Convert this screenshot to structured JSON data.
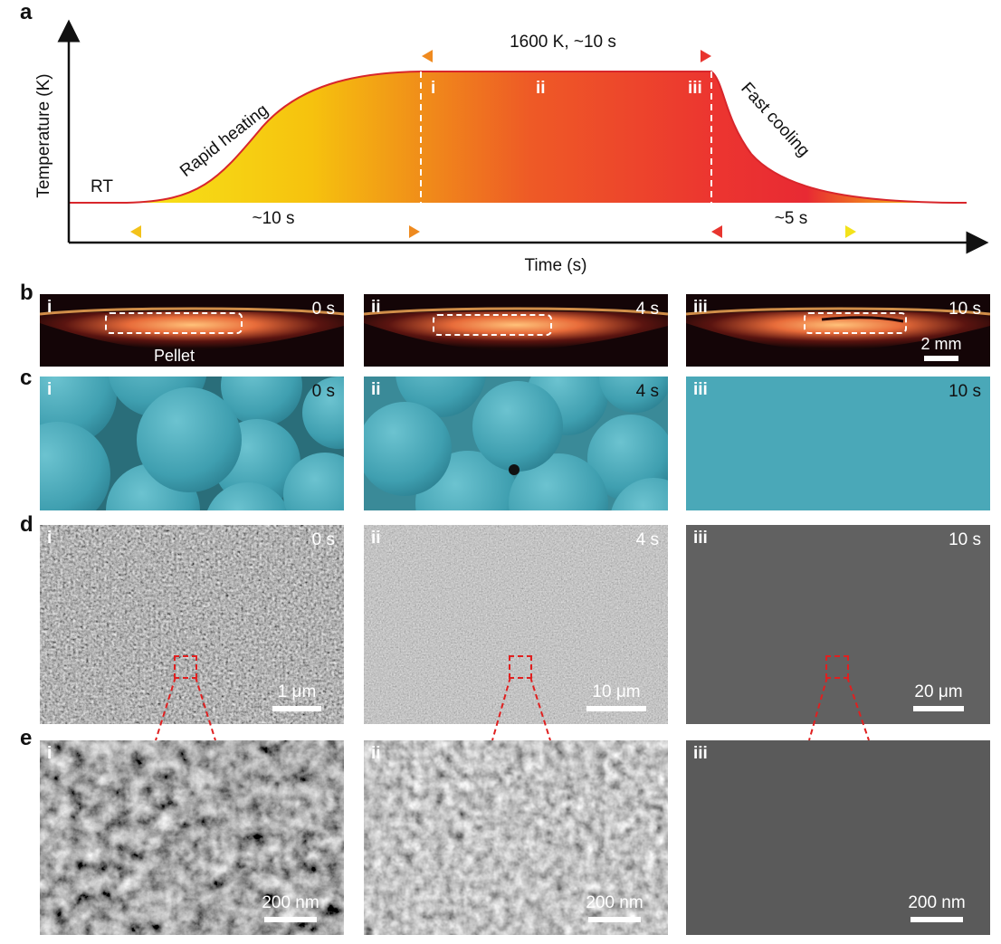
{
  "panel_a": {
    "label": "a",
    "ylabel": "Temperature (K)",
    "xlabel": "Time (s)",
    "rt": "RT",
    "rapid_heating": "Rapid heating",
    "fast_cooling": "Fast cooling",
    "hold": "1600 K, ~10 s",
    "heat_time": "~10 s",
    "cool_time": "~5 s",
    "marks": [
      "i",
      "ii",
      "iii"
    ]
  },
  "panel_b": {
    "label": "b",
    "items": [
      {
        "tag": "i",
        "time": "0 s",
        "note": "Pellet"
      },
      {
        "tag": "ii",
        "time": "4 s"
      },
      {
        "tag": "iii",
        "time": "10 s",
        "scale": "2 mm"
      }
    ]
  },
  "panel_c": {
    "label": "c",
    "items": [
      {
        "tag": "i",
        "time": "0 s"
      },
      {
        "tag": "ii",
        "time": "4 s"
      },
      {
        "tag": "iii",
        "time": "10 s"
      }
    ],
    "color": "#4aa8b8"
  },
  "panel_d": {
    "label": "d",
    "items": [
      {
        "tag": "i",
        "time": "0 s",
        "scale": "1 μm"
      },
      {
        "tag": "ii",
        "time": "4 s",
        "scale": "10 μm"
      },
      {
        "tag": "iii",
        "time": "10 s",
        "scale": "20 μm"
      }
    ]
  },
  "panel_e": {
    "label": "e",
    "items": [
      {
        "tag": "i",
        "scale": "200 nm"
      },
      {
        "tag": "ii",
        "scale": "200 nm"
      },
      {
        "tag": "iii",
        "scale": "200 nm"
      }
    ]
  }
}
